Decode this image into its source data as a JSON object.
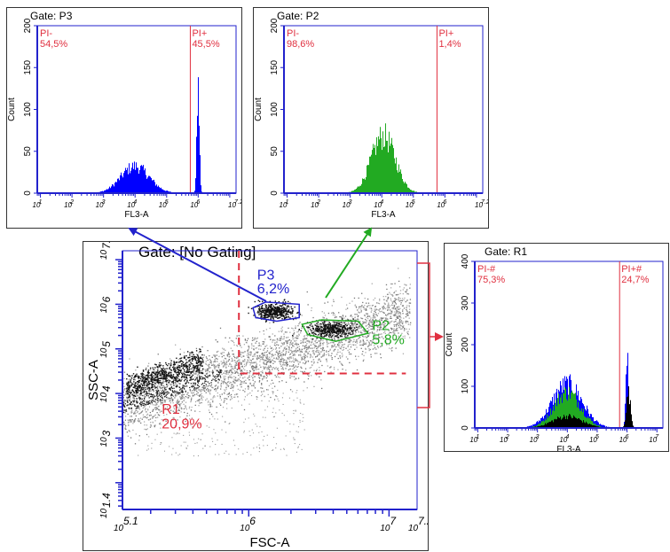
{
  "chart_data": [
    {
      "id": "histP3",
      "type": "histogram",
      "gate": "Gate: P3",
      "xlabel": "FL3-A",
      "ylabel": "Count",
      "xlim": [
        0.9,
        7.2
      ],
      "ylim": [
        0,
        200
      ],
      "yticks": [
        "0",
        "50",
        "100",
        "150",
        "200"
      ],
      "xticks": [
        {
          "v": 1,
          "t": "1"
        },
        {
          "v": 2,
          "t": "2"
        },
        {
          "v": 3,
          "t": "3"
        },
        {
          "v": 4,
          "t": "4"
        },
        {
          "v": 5,
          "t": "5"
        },
        {
          "v": 6,
          "t": "6"
        },
        {
          "v": 7.2,
          "t": "7.2"
        }
      ],
      "markers": [
        {
          "x": 5.75,
          "color": "#e03040"
        }
      ],
      "regions": [
        {
          "name": "PI-",
          "pct": "54,5%"
        },
        {
          "name": "PI+",
          "pct": "45,5%"
        }
      ],
      "series": [
        {
          "color": "#0000ff",
          "peaks": [
            {
              "mu": 4.0,
              "sigma": 0.45,
              "amp": 32
            },
            {
              "mu": 6.0,
              "sigma": 0.04,
              "amp": 125
            }
          ]
        }
      ]
    },
    {
      "id": "histP2",
      "type": "histogram",
      "gate": "Gate: P2",
      "xlabel": "FL3-A",
      "ylabel": "Count",
      "xlim": [
        0.9,
        7.2
      ],
      "ylim": [
        0,
        200
      ],
      "yticks": [
        "0",
        "50",
        "100",
        "150",
        "200"
      ],
      "xticks": [
        {
          "v": 1,
          "t": "1"
        },
        {
          "v": 2,
          "t": "2"
        },
        {
          "v": 3,
          "t": "3"
        },
        {
          "v": 4,
          "t": "4"
        },
        {
          "v": 5,
          "t": "5"
        },
        {
          "v": 6,
          "t": "6"
        },
        {
          "v": 7.2,
          "t": "7.2"
        }
      ],
      "markers": [
        {
          "x": 5.75,
          "color": "#e03040"
        }
      ],
      "regions": [
        {
          "name": "PI-",
          "pct": "98,6%"
        },
        {
          "name": "PI+",
          "pct": "1,4%"
        }
      ],
      "series": [
        {
          "color": "#22aa22",
          "peaks": [
            {
              "mu": 4.05,
              "sigma": 0.38,
              "amp": 68
            }
          ]
        }
      ]
    },
    {
      "id": "histR1",
      "type": "histogram",
      "gate": "Gate: R1",
      "xlabel": "FL3-A",
      "ylabel": "Count",
      "xlim": [
        0.9,
        7.2
      ],
      "ylim": [
        0,
        400
      ],
      "yticks": [
        "0",
        "100",
        "200",
        "300",
        "400"
      ],
      "xticks": [
        {
          "v": 1,
          "t": "1"
        },
        {
          "v": 2,
          "t": "2"
        },
        {
          "v": 3,
          "t": "3"
        },
        {
          "v": 4,
          "t": "4"
        },
        {
          "v": 5,
          "t": "5"
        },
        {
          "v": 6,
          "t": "6"
        },
        {
          "v": 7,
          "t": "7"
        }
      ],
      "markers": [
        {
          "x": 5.75,
          "color": "#e03040"
        }
      ],
      "regions": [
        {
          "name": "PI-#",
          "pct": "75,3%"
        },
        {
          "name": "PI+#",
          "pct": "24,7%"
        }
      ],
      "series": [
        {
          "color": "#0000ff",
          "peaks": [
            {
              "mu": 4.0,
              "sigma": 0.5,
              "amp": 105
            },
            {
              "mu": 6.0,
              "sigma": 0.04,
              "amp": 180
            }
          ]
        },
        {
          "color": "#22aa22",
          "peaks": [
            {
              "mu": 4.0,
              "sigma": 0.45,
              "amp": 85
            }
          ]
        },
        {
          "color": "#000000",
          "peaks": [
            {
              "mu": 4.0,
              "sigma": 0.5,
              "amp": 28
            },
            {
              "mu": 6.05,
              "sigma": 0.07,
              "amp": 85
            }
          ]
        }
      ]
    },
    {
      "id": "scatter",
      "type": "scatter",
      "gate": "Gate: [No Gating]",
      "xlabel": "FSC-A",
      "ylabel": "SSC-A",
      "xlim": [
        5.1,
        7.2
      ],
      "ylim": [
        1.4,
        7.2
      ],
      "xticks": [
        {
          "v": 5.1,
          "t": "5.1"
        },
        {
          "v": 6,
          "t": "6"
        },
        {
          "v": 7,
          "t": "7"
        },
        {
          "v": 7.2,
          "t": "7.2"
        }
      ],
      "yticks": [
        {
          "v": 1.4,
          "t": "1.4"
        },
        {
          "v": 3,
          "t": "3"
        },
        {
          "v": 4,
          "t": "4"
        },
        {
          "v": 5,
          "t": "5"
        },
        {
          "v": 6,
          "t": "6"
        },
        {
          "v": 7.2,
          "t": "7.2"
        }
      ],
      "gates": [
        {
          "name": "P3",
          "pct": "6,2%",
          "color": "#2222cc"
        },
        {
          "name": "P2",
          "pct": "5,8%",
          "color": "#22aa22"
        },
        {
          "name": "R1",
          "pct": "20,9%",
          "color": "#e03040"
        }
      ]
    }
  ]
}
